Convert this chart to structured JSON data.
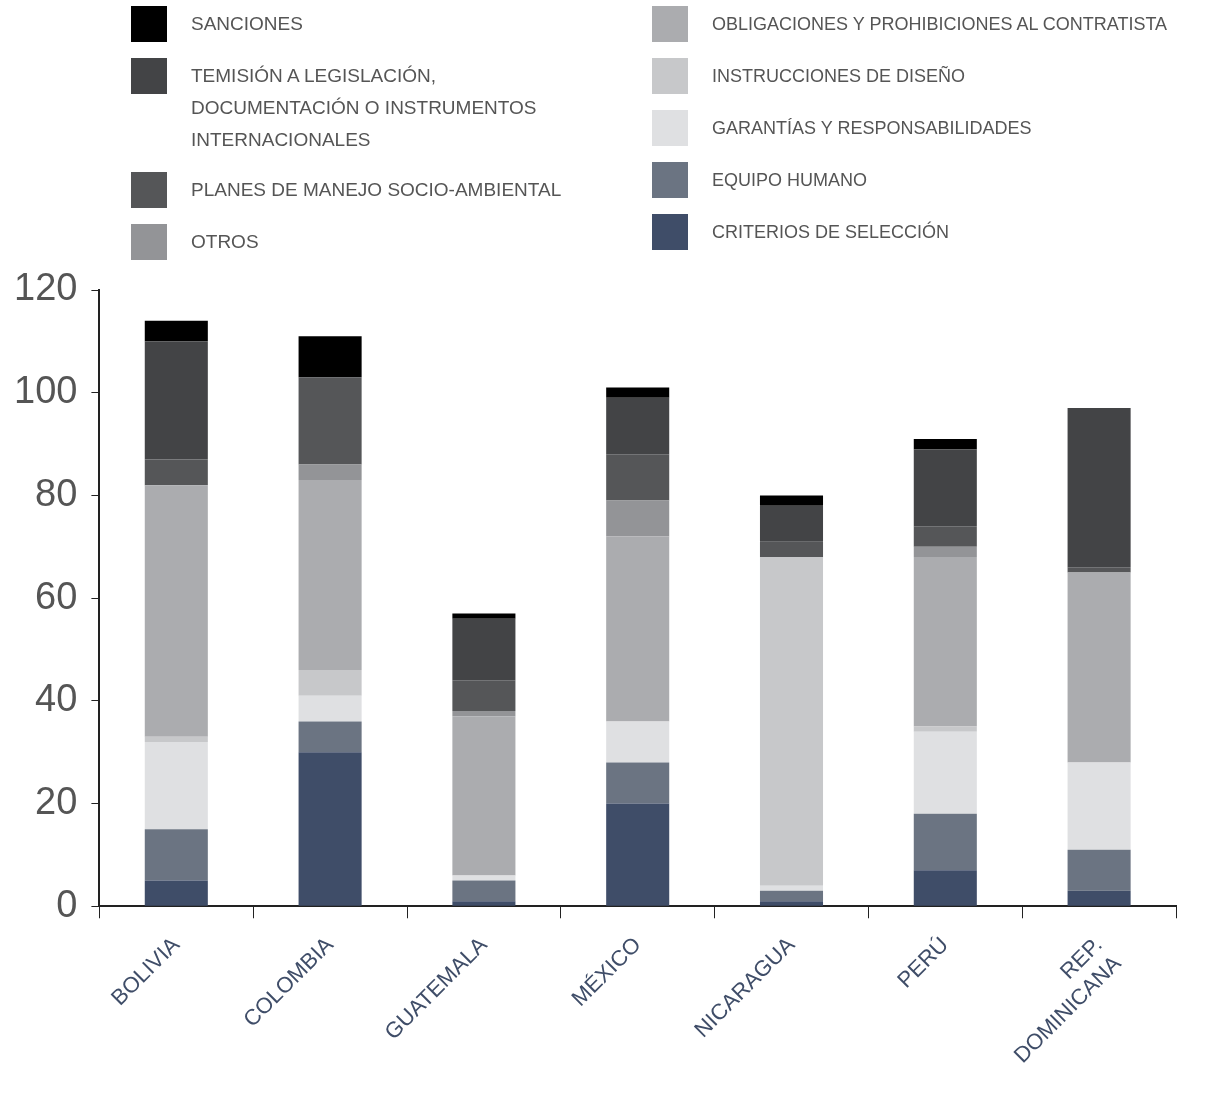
{
  "chart_data": {
    "type": "bar",
    "stacked": true,
    "legend": "top",
    "grid": false,
    "categories": [
      "BOLIVIA",
      "COLOMBIA",
      "GUATEMALA",
      "MÉXICO",
      "NICARAGUA",
      "PERÚ",
      "REP. DOMINICANA"
    ],
    "ylim": [
      0,
      120
    ],
    "yticks": [
      0,
      20,
      40,
      60,
      80,
      100,
      120
    ],
    "series": [
      {
        "name": "CRITERIOS DE SELECCIÓN",
        "color": "#3f4d68",
        "values": [
          5,
          30,
          1,
          20,
          1,
          7,
          3
        ]
      },
      {
        "name": "EQUIPO HUMANO",
        "color": "#6b7482",
        "values": [
          10,
          6,
          4,
          8,
          2,
          11,
          8
        ]
      },
      {
        "name": "GARANTÍAS Y RESPONSABILIDADES",
        "color": "#dfe0e2",
        "values": [
          17,
          5,
          1,
          8,
          1,
          16,
          17
        ]
      },
      {
        "name": "INSTRUCCIONES DE DISEÑO",
        "color": "#c7c8ca",
        "values": [
          1,
          5,
          0,
          0,
          64,
          1,
          0
        ]
      },
      {
        "name": "OBLIGACIONES Y PROHIBICIONES AL CONTRATISTA",
        "color": "#abacaf",
        "values": [
          49,
          37,
          31,
          36,
          0,
          33,
          37
        ]
      },
      {
        "name": "OTROS",
        "color": "#939497",
        "values": [
          0,
          3,
          1,
          7,
          0,
          2,
          0
        ]
      },
      {
        "name": "PLANES DE MANEJO SOCIO-AMBIENTAL",
        "color": "#555658",
        "values": [
          5,
          17,
          6,
          9,
          3,
          4,
          1
        ]
      },
      {
        "name": "TEMISIÓN A LEGISLACIÓN, DOCUMENTACIÓN O INSTRUMENTOS INTERNACIONALES",
        "color": "#434446",
        "values": [
          23,
          0,
          12,
          11,
          7,
          15,
          31
        ]
      },
      {
        "name": "SANCIONES",
        "color": "#000000",
        "values": [
          4,
          8,
          1,
          2,
          2,
          2,
          0
        ]
      }
    ]
  }
}
